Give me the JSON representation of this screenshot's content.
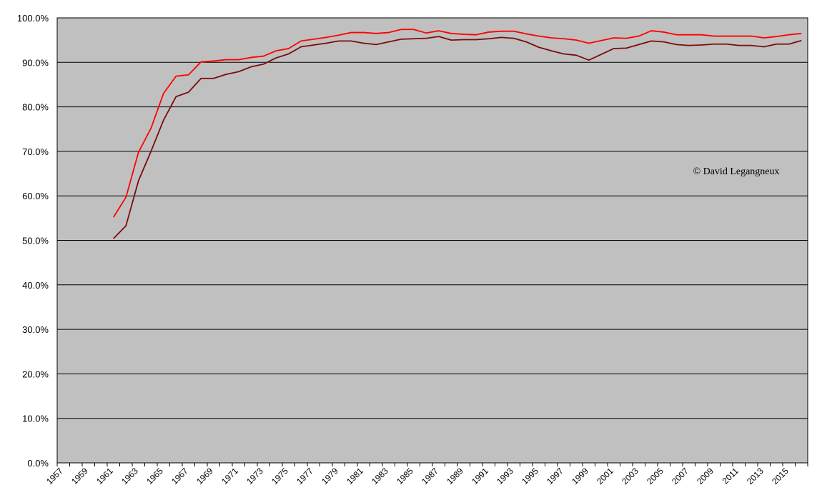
{
  "chart_data": {
    "type": "line",
    "annotation": "© David Legangneux",
    "categories": [
      "1957",
      null,
      "1959",
      null,
      "1961",
      null,
      "1963",
      null,
      "1965",
      null,
      "1967",
      null,
      "1969",
      null,
      "1971",
      null,
      "1973",
      null,
      "1975",
      null,
      "1977",
      null,
      "1979",
      null,
      "1981",
      null,
      "1983",
      null,
      "1985",
      null,
      "1987",
      null,
      "1989",
      null,
      "1991",
      null,
      "1993",
      null,
      "1995",
      null,
      "1997",
      null,
      "1999",
      null,
      "2001",
      null,
      "2003",
      null,
      "2005",
      null,
      "2007",
      null,
      "2009",
      null,
      "2011",
      null,
      "2013",
      null,
      "2015",
      null
    ],
    "series": [
      {
        "color": "#ff0000",
        "values": [
          null,
          null,
          null,
          null,
          55.2,
          59.7,
          69.8,
          75.2,
          83.0,
          86.9,
          87.2,
          90.1,
          90.3,
          90.6,
          90.6,
          91.1,
          91.4,
          92.6,
          93.1,
          94.8,
          95.2,
          95.6,
          96.1,
          96.7,
          96.7,
          96.5,
          96.7,
          97.4,
          97.4,
          96.6,
          97.1,
          96.5,
          96.3,
          96.2,
          96.8,
          97.0,
          97.0,
          96.4,
          95.9,
          95.5,
          95.3,
          95.0,
          94.3,
          94.9,
          95.5,
          95.4,
          95.9,
          97.1,
          96.8,
          96.2,
          96.2,
          96.2,
          95.9,
          95.9,
          95.9,
          95.9,
          95.5,
          95.8,
          96.2,
          96.5
        ]
      },
      {
        "color": "#7b0c0c",
        "values": [
          null,
          null,
          null,
          null,
          50.4,
          53.3,
          63.4,
          70.0,
          77.0,
          82.3,
          83.3,
          86.4,
          86.4,
          87.3,
          87.9,
          89.0,
          89.6,
          91.0,
          91.9,
          93.5,
          93.9,
          94.3,
          94.8,
          94.8,
          94.3,
          94.0,
          94.6,
          95.2,
          95.3,
          95.4,
          95.8,
          95.0,
          95.1,
          95.1,
          95.3,
          95.6,
          95.4,
          94.6,
          93.4,
          92.6,
          91.9,
          91.6,
          90.5,
          91.8,
          93.1,
          93.2,
          94.0,
          94.8,
          94.6,
          94.0,
          93.8,
          93.9,
          94.1,
          94.1,
          93.8,
          93.8,
          93.5,
          94.1,
          94.1,
          94.9
        ]
      }
    ],
    "ylim": [
      0,
      100
    ],
    "yticks": [
      {
        "value": 0,
        "label": "0.0%"
      },
      {
        "value": 10,
        "label": "10.0%"
      },
      {
        "value": 20,
        "label": "20.0%"
      },
      {
        "value": 30,
        "label": "30.0%"
      },
      {
        "value": 40,
        "label": "40.0%"
      },
      {
        "value": 50,
        "label": "50.0%"
      },
      {
        "value": 60,
        "label": "60.0%"
      },
      {
        "value": 70,
        "label": "70.0%"
      },
      {
        "value": 80,
        "label": "80.0%"
      },
      {
        "value": 90,
        "label": "90.0%"
      },
      {
        "value": 100,
        "label": "100.0%"
      }
    ],
    "grid": true,
    "background": "#c0c0c0"
  }
}
